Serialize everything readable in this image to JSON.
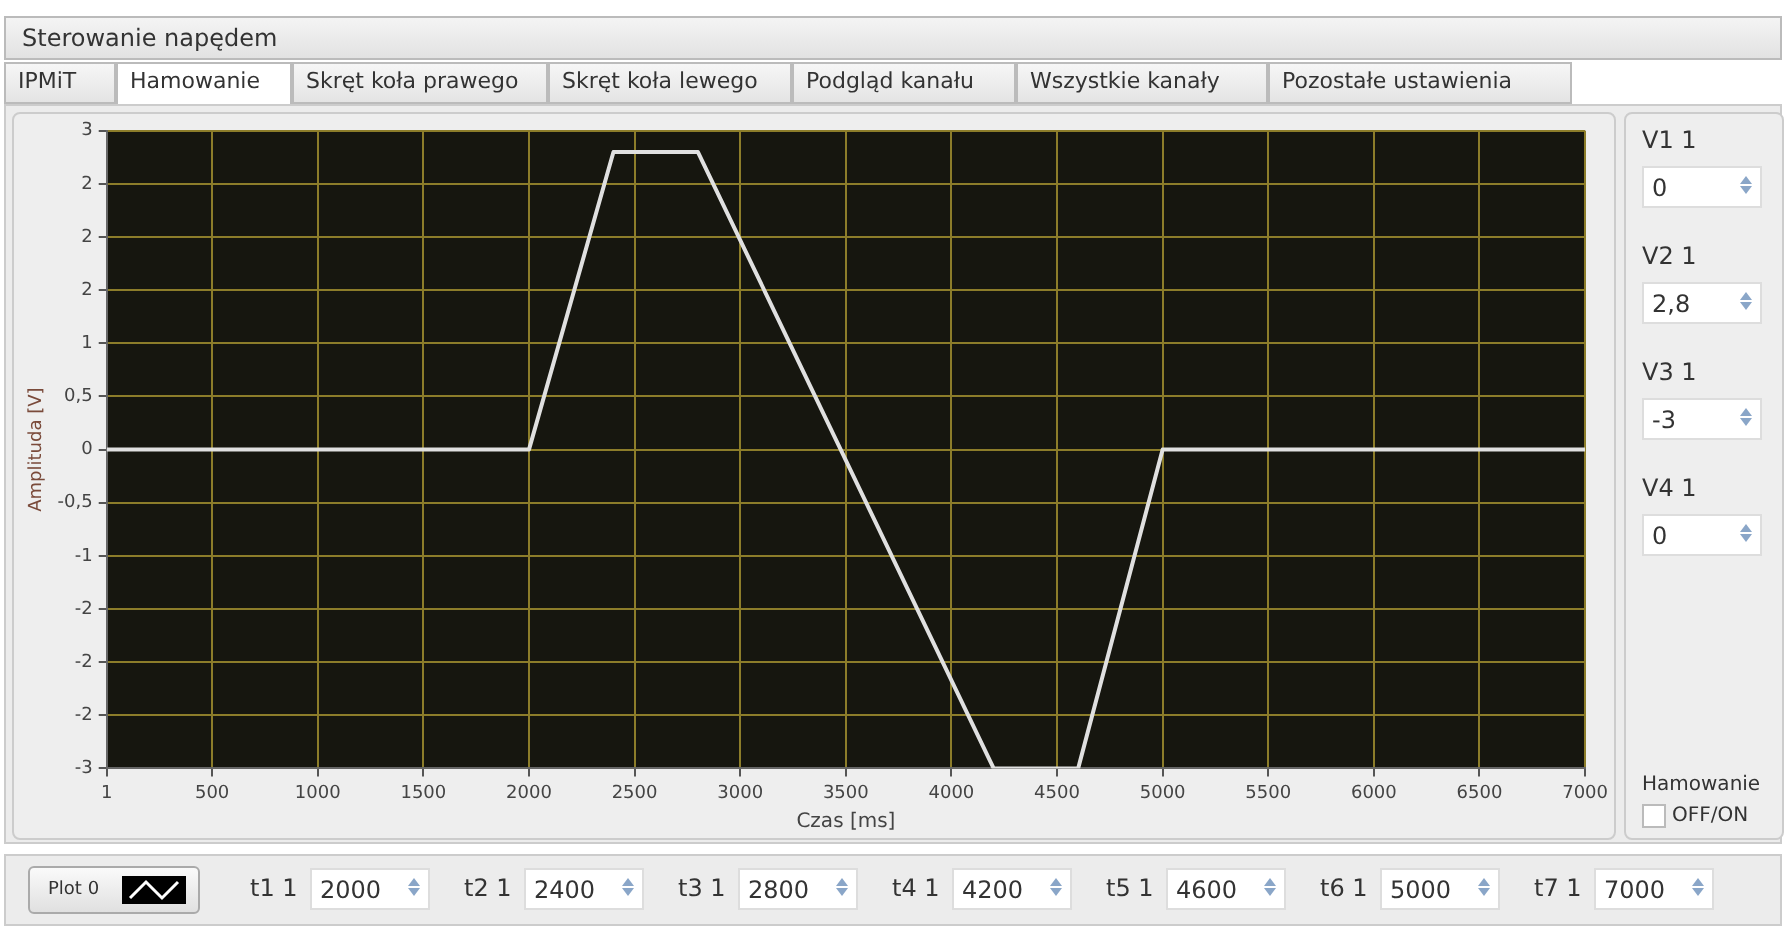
{
  "chart_data": {
    "type": "line",
    "xlabel": "Czas [ms]",
    "ylabel": "Amplituda [V]",
    "x": [
      1,
      2000,
      2400,
      2800,
      4200,
      4600,
      5000,
      7000
    ],
    "series": [
      {
        "color": "#e0e0e0",
        "values": [
          0,
          0,
          2.8,
          2.8,
          -3,
          -3,
          0,
          0
        ]
      }
    ],
    "xlim": [
      1,
      7000
    ],
    "xticks": [
      1,
      500,
      1000,
      1500,
      2000,
      2500,
      3000,
      3500,
      4000,
      4500,
      5000,
      5500,
      6000,
      6500,
      7000
    ],
    "ylim": [
      -3,
      3
    ],
    "yticks": [
      3,
      {
        "value": 2.5,
        "label": "2"
      },
      2,
      {
        "value": 1.5,
        "label": "2"
      },
      1,
      {
        "value": 0.5,
        "label": "0,5"
      },
      0,
      {
        "value": -0.5,
        "label": "-0,5"
      },
      -1,
      {
        "value": -1.5,
        "label": "-2"
      },
      -2,
      {
        "value": -2.5,
        "label": "-2"
      },
      -3
    ],
    "grid": true,
    "legend": false,
    "marker": "none",
    "line_style": "solid",
    "annotations": [
      "Sterowanie napędem",
      "IPMiT",
      "Hamowanie",
      "Skręt koła prawego",
      "Skręt koła lewego",
      "Podgląd kanału",
      "Wszystkie kanały",
      "Pozostałe ustawienia",
      "V1 1",
      "0",
      "V2 1",
      "2,8",
      "V3 1",
      "-3",
      "V4 1",
      "0",
      "Hamowanie",
      "OFF/ON",
      "Plot 0",
      "t1 1",
      "2000",
      "t2 1",
      "2400",
      "t3 1",
      "2800",
      "t4 1",
      "4200",
      "t5 1",
      "4600",
      "t6 1",
      "5000",
      "t7 1",
      "7000"
    ]
  }
}
